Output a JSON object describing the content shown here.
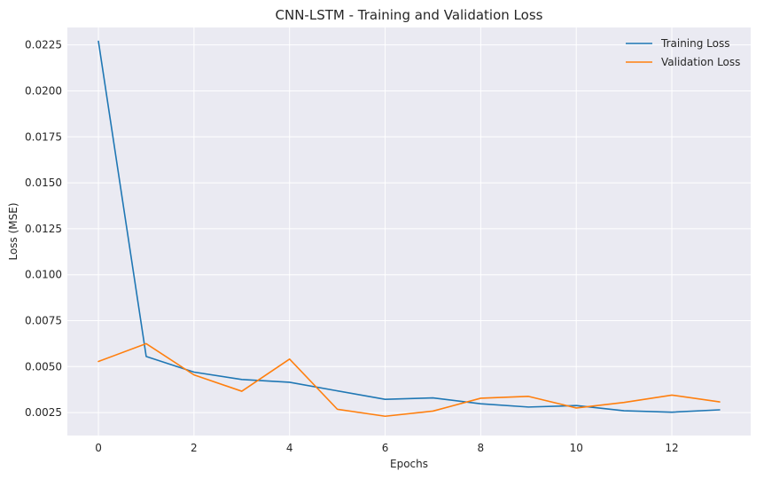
{
  "chart_data": {
    "type": "line",
    "title": "CNN-LSTM - Training and Validation Loss",
    "xlabel": "Epochs",
    "ylabel": "Loss (MSE)",
    "x": [
      0,
      1,
      2,
      3,
      4,
      5,
      6,
      7,
      8,
      9,
      10,
      11,
      12,
      13
    ],
    "xlim": [
      -0.65,
      13.65
    ],
    "ylim": [
      0.00125,
      0.02345
    ],
    "xticks": [
      0,
      2,
      4,
      6,
      8,
      10,
      12
    ],
    "xtick_labels": [
      "0",
      "2",
      "4",
      "6",
      "8",
      "10",
      "12"
    ],
    "yticks": [
      0.0025,
      0.005,
      0.0075,
      0.01,
      0.0125,
      0.015,
      0.0175,
      0.02,
      0.0225
    ],
    "ytick_labels": [
      "0.0025",
      "0.0050",
      "0.0075",
      "0.0100",
      "0.0125",
      "0.0150",
      "0.0175",
      "0.0200",
      "0.0225"
    ],
    "grid": true,
    "legend_position": "top-right",
    "background": "#eaeaf2",
    "series": [
      {
        "name": "Training Loss",
        "color": "#1f77b4",
        "values": [
          0.0227,
          0.00555,
          0.0047,
          0.0043,
          0.00415,
          0.00368,
          0.00322,
          0.0033,
          0.00298,
          0.0028,
          0.00288,
          0.0026,
          0.00252,
          0.00265
        ]
      },
      {
        "name": "Validation Loss",
        "color": "#ff7f0e",
        "values": [
          0.00528,
          0.00625,
          0.00455,
          0.00366,
          0.00541,
          0.00268,
          0.0023,
          0.00258,
          0.00328,
          0.00338,
          0.00275,
          0.00305,
          0.00345,
          0.00308
        ]
      }
    ]
  }
}
